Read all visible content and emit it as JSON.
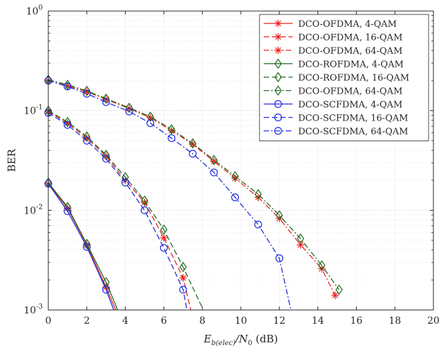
{
  "chart_data": {
    "type": "line",
    "title": "",
    "xlabel": "E_b(elec)/N_0 (dB)",
    "xlabel_parts": {
      "main": "E",
      "sub": "b(elec)",
      "div": "/N",
      "sub2": "0",
      "unit": " (dB)"
    },
    "ylabel": "BER",
    "xlim": [
      0,
      20
    ],
    "ylim": [
      0.001,
      1
    ],
    "yscale": "log",
    "grid": true,
    "legend_position": "top-right",
    "x_ticks": [
      0,
      2,
      4,
      6,
      8,
      10,
      12,
      14,
      16,
      18,
      20
    ],
    "y_ticks": [
      {
        "value": 0.001,
        "base": "10",
        "exp": "-3"
      },
      {
        "value": 0.01,
        "base": "10",
        "exp": "-2"
      },
      {
        "value": 0.1,
        "base": "10",
        "exp": "-1"
      },
      {
        "value": 1,
        "base": "10",
        "exp": "0"
      }
    ],
    "series": [
      {
        "name": "DCO-OFDMA, 4-QAM",
        "color": "#e8231f",
        "dash": "solid",
        "marker": "asterisk",
        "x": [
          0,
          1,
          2,
          3,
          3.5
        ],
        "y": [
          0.0185,
          0.0105,
          0.0045,
          0.0017,
          0.001
        ]
      },
      {
        "name": "DCO-OFDMA, 16-QAM",
        "color": "#e8231f",
        "dash": "dash",
        "marker": "asterisk",
        "x": [
          0,
          1,
          2,
          3,
          4,
          5,
          6,
          7,
          7.4
        ],
        "y": [
          0.098,
          0.075,
          0.053,
          0.035,
          0.02,
          0.012,
          0.0053,
          0.0021,
          0.001
        ]
      },
      {
        "name": "DCO-OFDMA, 64-QAM",
        "color": "#e8231f",
        "dash": "dashdot",
        "marker": "asterisk",
        "x": [
          0,
          1,
          2,
          3,
          4.2,
          5.3,
          6.4,
          7.5,
          8.6,
          9.7,
          10.9,
          12,
          13.1,
          14.2,
          14.9
        ],
        "y": [
          0.2,
          0.178,
          0.155,
          0.13,
          0.105,
          0.085,
          0.063,
          0.046,
          0.031,
          0.021,
          0.0135,
          0.0083,
          0.0045,
          0.0026,
          0.0014
        ]
      },
      {
        "name": "DCO-ROFDMA, 4-QAM",
        "color": "#1e6b1e",
        "dash": "solid",
        "marker": "diamond",
        "x": [
          0,
          1,
          2,
          3,
          3.6
        ],
        "y": [
          0.019,
          0.0108,
          0.0046,
          0.0019,
          0.001
        ]
      },
      {
        "name": "DCO-ROFDMA, 16-QAM",
        "color": "#1e6b1e",
        "dash": "dash",
        "marker": "diamond",
        "x": [
          0,
          1,
          2,
          3,
          4,
          5,
          6,
          7,
          8
        ],
        "y": [
          0.1,
          0.077,
          0.055,
          0.036,
          0.0215,
          0.0125,
          0.0064,
          0.0027,
          0.00105
        ]
      },
      {
        "name": "DCO-OFDMA, 64-QAM",
        "color": "#1e6b1e",
        "dash": "dashdot",
        "marker": "diamond",
        "x": [
          0,
          1,
          2,
          3,
          4.2,
          5.3,
          6.4,
          7.5,
          8.6,
          9.7,
          10.9,
          12,
          13.1,
          14.2,
          15.1
        ],
        "y": [
          0.205,
          0.182,
          0.158,
          0.132,
          0.107,
          0.087,
          0.065,
          0.047,
          0.032,
          0.022,
          0.0145,
          0.0089,
          0.0052,
          0.0028,
          0.0016
        ]
      },
      {
        "name": "DCO-SCFDMA, 4-QAM",
        "color": "#1f2be0",
        "dash": "solid",
        "marker": "circle",
        "x": [
          0,
          1,
          2,
          3,
          3.4
        ],
        "y": [
          0.0185,
          0.0098,
          0.0043,
          0.0016,
          0.001
        ]
      },
      {
        "name": "DCO-SCFDMA, 16-QAM",
        "color": "#1f2be0",
        "dash": "dash",
        "marker": "circle",
        "x": [
          0,
          1,
          2,
          3,
          4,
          5,
          6,
          7,
          7.2
        ],
        "y": [
          0.095,
          0.072,
          0.05,
          0.033,
          0.019,
          0.01,
          0.0042,
          0.0016,
          0.001
        ]
      },
      {
        "name": "DCO-SCFDMA, 64-QAM",
        "color": "#1f2be0",
        "dash": "dashdot",
        "marker": "circle",
        "x": [
          0,
          1,
          2,
          3,
          4.2,
          5.3,
          6.4,
          7.5,
          8.6,
          9.7,
          10.9,
          12,
          12.6
        ],
        "y": [
          0.2,
          0.175,
          0.148,
          0.122,
          0.098,
          0.075,
          0.053,
          0.037,
          0.024,
          0.0135,
          0.0072,
          0.0033,
          0.001
        ]
      }
    ]
  }
}
